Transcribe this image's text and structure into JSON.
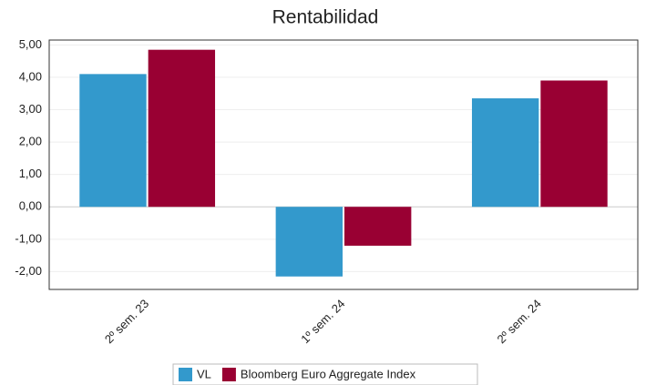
{
  "chart_data": {
    "type": "bar",
    "title": "Rentabilidad",
    "categories": [
      "2º sem. 23",
      "1º sem. 24",
      "2º sem. 24"
    ],
    "series": [
      {
        "name": "VL",
        "color": "#3399cc",
        "values": [
          4.1,
          -2.15,
          3.35
        ]
      },
      {
        "name": "Bloomberg Euro Aggregate Index",
        "color": "#990033",
        "values": [
          4.85,
          -1.2,
          3.9
        ]
      }
    ],
    "ylim": [
      -2.55,
      5.15
    ],
    "yticks": [
      {
        "value": -2,
        "label": "-2,00"
      },
      {
        "value": -1,
        "label": "-1,00"
      },
      {
        "value": 0,
        "label": "0,00"
      },
      {
        "value": 1,
        "label": "1,00"
      },
      {
        "value": 2,
        "label": "2,00"
      },
      {
        "value": 3,
        "label": "3,00"
      },
      {
        "value": 4,
        "label": "4,00"
      },
      {
        "value": 5,
        "label": "5,00"
      }
    ],
    "grid": true,
    "legend": "bottom"
  }
}
